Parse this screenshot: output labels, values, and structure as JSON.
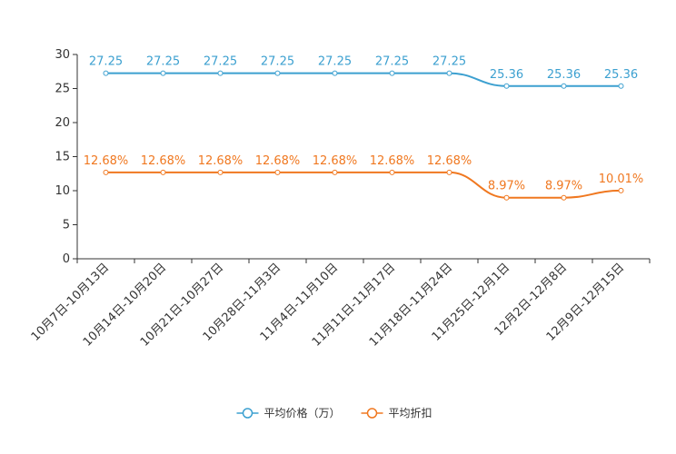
{
  "chart_data": {
    "type": "line",
    "title": "",
    "xlabel": "",
    "ylabel": "",
    "ylim": [
      0,
      30
    ],
    "yticks": [
      "0",
      "5",
      "10",
      "15",
      "20",
      "25",
      "30"
    ],
    "grid": false,
    "legend_position": "bottom-center",
    "categories": [
      "10月7日-10月13日",
      "10月14日-10月20日",
      "10月21日-10月27日",
      "10月28日-11月3日",
      "11月4日-11月10日",
      "11月11日-11月17日",
      "11月18日-11月24日",
      "11月25日-12月1日",
      "12月2日-12月8日",
      "12月9日-12月15日"
    ],
    "series": [
      {
        "name": "平均价格（万）",
        "color": "#3ca0d0",
        "values": [
          27.25,
          27.25,
          27.25,
          27.25,
          27.25,
          27.25,
          27.25,
          25.36,
          25.36,
          25.36
        ],
        "labels": [
          "27.25",
          "27.25",
          "27.25",
          "27.25",
          "27.25",
          "27.25",
          "27.25",
          "25.36",
          "25.36",
          "25.36"
        ]
      },
      {
        "name": "平均折扣",
        "color": "#f07820",
        "values": [
          12.68,
          12.68,
          12.68,
          12.68,
          12.68,
          12.68,
          12.68,
          8.97,
          8.97,
          10.01
        ],
        "labels": [
          "12.68%",
          "12.68%",
          "12.68%",
          "12.68%",
          "12.68%",
          "12.68%",
          "12.68%",
          "8.97%",
          "8.97%",
          "10.01%"
        ]
      }
    ]
  }
}
